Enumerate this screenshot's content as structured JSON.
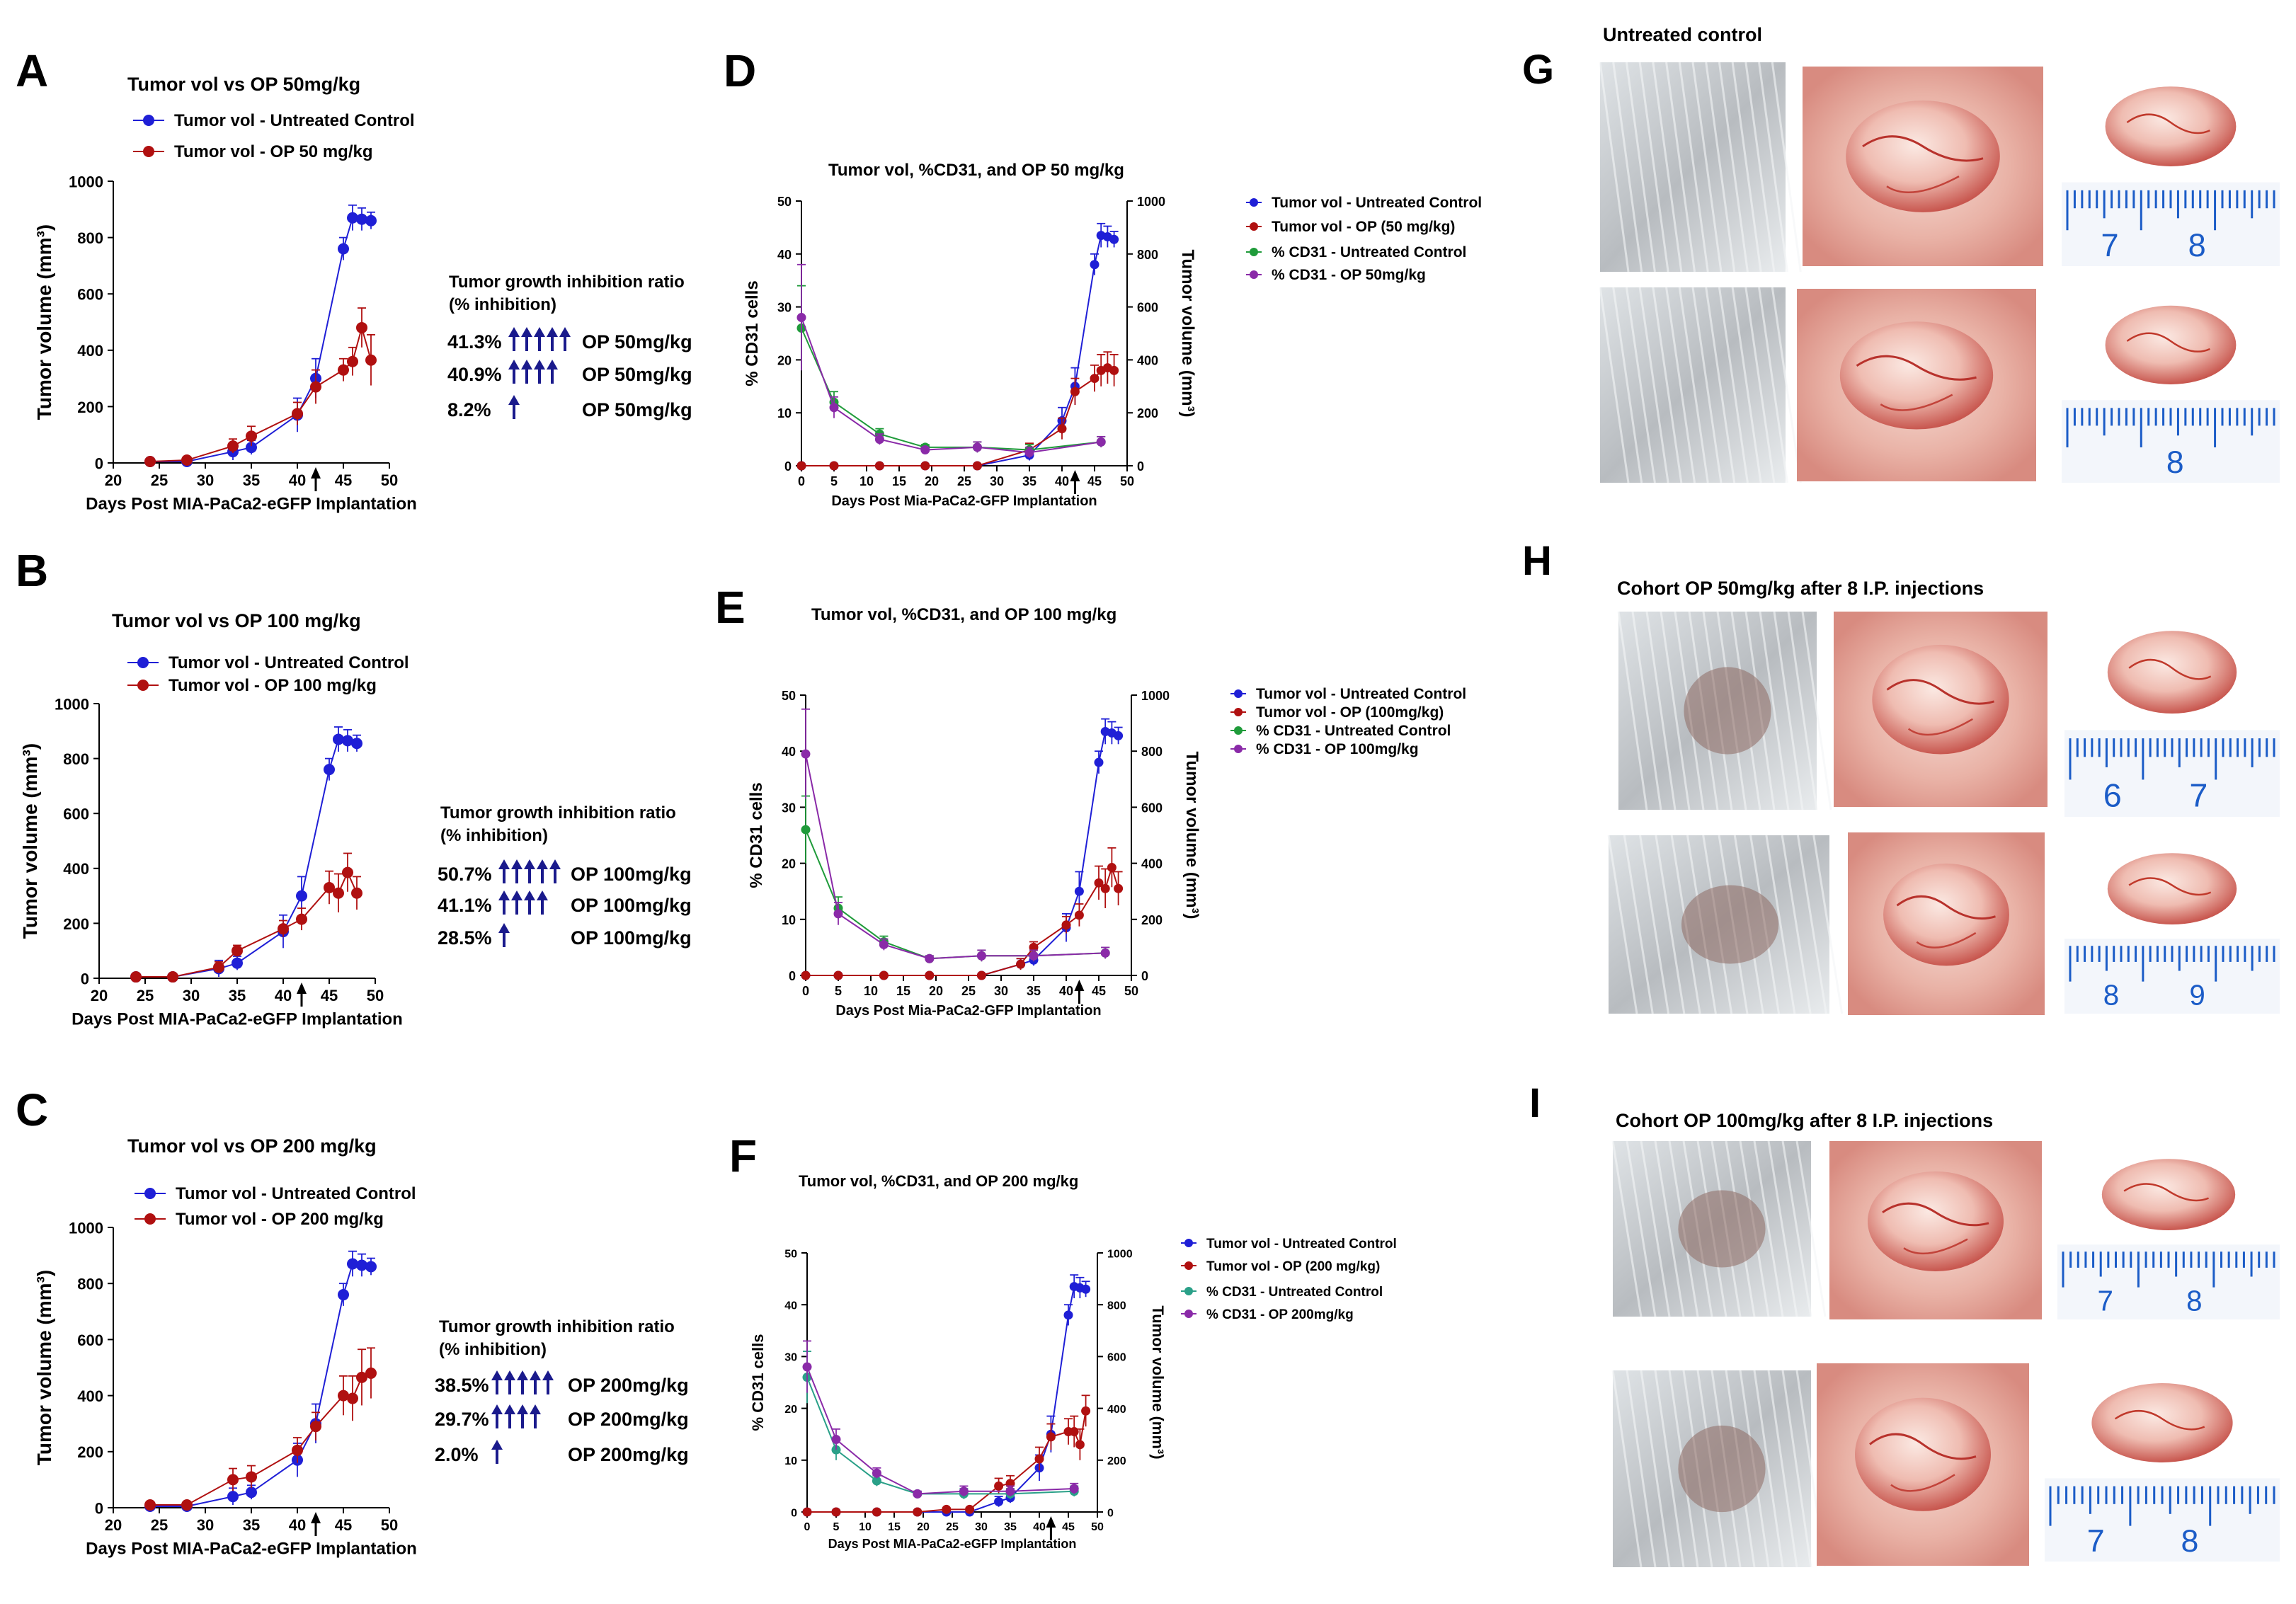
{
  "figure": {
    "panels": [
      "A",
      "B",
      "C",
      "D",
      "E",
      "F",
      "G",
      "H",
      "I"
    ]
  },
  "colors": {
    "control": "#1f1fd6",
    "op": "#b01010",
    "cd31_control": "#1f9b3a",
    "cd31_control_f": "#2aa088",
    "cd31_op": "#8a2aa8",
    "arrow": "#1a1a8c"
  },
  "inhibition": {
    "title_line1": "Tumor growth inhibition ratio",
    "title_line2": "(% inhibition)",
    "A": [
      {
        "pct": "41.3%",
        "arrows": 5,
        "label": "OP 50mg/kg"
      },
      {
        "pct": "40.9%",
        "arrows": 4,
        "label": "OP 50mg/kg"
      },
      {
        "pct": "8.2%",
        "arrows": 1,
        "label": "OP 50mg/kg"
      }
    ],
    "B": [
      {
        "pct": "50.7%",
        "arrows": 5,
        "label": "OP 100mg/kg"
      },
      {
        "pct": "41.1%",
        "arrows": 4,
        "label": "OP 100mg/kg"
      },
      {
        "pct": "28.5%",
        "arrows": 1,
        "label": "OP 100mg/kg"
      }
    ],
    "C": [
      {
        "pct": "38.5%",
        "arrows": 5,
        "label": "OP 200mg/kg"
      },
      {
        "pct": "29.7%",
        "arrows": 4,
        "label": "OP 200mg/kg"
      },
      {
        "pct": "2.0%",
        "arrows": 1,
        "label": "OP 200mg/kg"
      }
    ]
  },
  "photos": {
    "G": {
      "caption": "Untreated control",
      "rows": [
        [
          "",
          "",
          "7 8"
        ],
        [
          "",
          "",
          "8"
        ]
      ]
    },
    "H": {
      "caption": "Cohort OP 50mg/kg after 8 I.P. injections",
      "rows": [
        [
          "",
          "",
          "6 7"
        ],
        [
          "",
          "",
          "8 9"
        ]
      ]
    },
    "I": {
      "caption": "Cohort OP 100mg/kg after 8 I.P. injections",
      "rows": [
        [
          "",
          "",
          "7 8"
        ],
        [
          "",
          "",
          "7 8"
        ]
      ]
    }
  },
  "chart_data": [
    {
      "id": "A",
      "type": "line",
      "title": "Tumor vol vs OP 50mg/kg",
      "xlabel": "Days Post MIA-PaCa2-eGFP Implantation",
      "ylabel": "Tumor volume (mm³)",
      "xlim": [
        20,
        50
      ],
      "ylim": [
        0,
        1000
      ],
      "xticks": [
        20,
        25,
        30,
        35,
        40,
        45,
        50
      ],
      "yticks": [
        0,
        200,
        400,
        600,
        800,
        1000
      ],
      "treatment_arrow_x": 42,
      "series": [
        {
          "name": "Tumor vol - Untreated Control",
          "color": "control",
          "x": [
            24,
            28,
            33,
            35,
            40,
            42,
            45,
            46,
            47,
            48
          ],
          "y": [
            5,
            5,
            40,
            55,
            170,
            300,
            760,
            870,
            865,
            860
          ],
          "err": [
            5,
            5,
            30,
            25,
            60,
            70,
            40,
            45,
            40,
            30
          ]
        },
        {
          "name": "Tumor vol - OP 50 mg/kg",
          "color": "op",
          "x": [
            24,
            28,
            33,
            35,
            40,
            42,
            45,
            46,
            47,
            48
          ],
          "y": [
            5,
            10,
            60,
            95,
            175,
            270,
            330,
            360,
            480,
            365
          ],
          "err": [
            5,
            5,
            25,
            35,
            40,
            60,
            40,
            50,
            70,
            90
          ]
        }
      ]
    },
    {
      "id": "B",
      "type": "line",
      "title": "Tumor vol vs OP 100 mg/kg",
      "xlabel": "Days Post MIA-PaCa2-eGFP Implantation",
      "ylabel": "Tumor volume (mm³)",
      "xlim": [
        20,
        50
      ],
      "ylim": [
        0,
        1000
      ],
      "xticks": [
        20,
        25,
        30,
        35,
        40,
        45,
        50
      ],
      "yticks": [
        0,
        200,
        400,
        600,
        800,
        1000
      ],
      "treatment_arrow_x": 42,
      "series": [
        {
          "name": "Tumor vol - Untreated Control",
          "color": "control",
          "x": [
            24,
            28,
            33,
            35,
            40,
            42,
            45,
            46,
            47,
            48
          ],
          "y": [
            5,
            5,
            35,
            55,
            170,
            300,
            760,
            870,
            865,
            855
          ],
          "err": [
            5,
            5,
            30,
            25,
            60,
            70,
            40,
            45,
            40,
            30
          ]
        },
        {
          "name": "Tumor vol - OP 100 mg/kg",
          "color": "op",
          "x": [
            24,
            28,
            33,
            35,
            40,
            42,
            45,
            46,
            47,
            48
          ],
          "y": [
            5,
            5,
            40,
            100,
            180,
            215,
            330,
            310,
            385,
            310
          ],
          "err": [
            5,
            5,
            20,
            20,
            30,
            40,
            60,
            70,
            70,
            60
          ]
        }
      ]
    },
    {
      "id": "C",
      "type": "line",
      "title": "Tumor vol vs OP 200 mg/kg",
      "xlabel": "Days Post MIA-PaCa2-eGFP Implantation",
      "ylabel": "Tumor volume (mm³)",
      "xlim": [
        20,
        50
      ],
      "ylim": [
        0,
        1000
      ],
      "xticks": [
        20,
        25,
        30,
        35,
        40,
        45,
        50
      ],
      "yticks": [
        0,
        200,
        400,
        600,
        800,
        1000
      ],
      "treatment_arrow_x": 42,
      "series": [
        {
          "name": "Tumor vol - Untreated Control",
          "color": "control",
          "x": [
            24,
            28,
            33,
            35,
            40,
            42,
            45,
            46,
            47,
            48
          ],
          "y": [
            5,
            5,
            40,
            55,
            170,
            300,
            760,
            870,
            865,
            860
          ],
          "err": [
            5,
            5,
            30,
            25,
            60,
            70,
            40,
            45,
            40,
            30
          ]
        },
        {
          "name": "Tumor vol - OP 200 mg/kg",
          "color": "op",
          "x": [
            24,
            28,
            33,
            35,
            40,
            42,
            45,
            46,
            47,
            48
          ],
          "y": [
            10,
            10,
            100,
            110,
            205,
            290,
            400,
            390,
            465,
            480
          ],
          "err": [
            5,
            5,
            40,
            40,
            45,
            50,
            70,
            80,
            100,
            90
          ]
        }
      ]
    },
    {
      "id": "D",
      "type": "line",
      "title": "Tumor vol, %CD31, and OP 50 mg/kg",
      "xlabel": "Days Post Mia-PaCa2-GFP Implantation",
      "ylabel": "% CD31 cells",
      "ylabel2": "Tumor volume (mm³)",
      "xlim": [
        0,
        50
      ],
      "ylim": [
        0,
        50
      ],
      "ylim2": [
        0,
        1000
      ],
      "xticks": [
        0,
        5,
        10,
        15,
        20,
        25,
        30,
        35,
        40,
        45,
        50
      ],
      "yticks": [
        0,
        10,
        20,
        30,
        40,
        50
      ],
      "yticks2": [
        0,
        200,
        400,
        600,
        800,
        1000
      ],
      "treatment_arrow_x": 42,
      "series": [
        {
          "name": "Tumor vol - Untreated  Control",
          "color": "control",
          "axis": "right",
          "x": [
            0,
            5,
            12,
            19,
            27,
            35,
            40,
            42,
            45,
            46,
            47,
            48
          ],
          "y": [
            0,
            0,
            0,
            0,
            0,
            40,
            170,
            300,
            760,
            870,
            865,
            855
          ],
          "err": [
            0,
            0,
            0,
            0,
            0,
            20,
            50,
            70,
            40,
            45,
            40,
            30
          ]
        },
        {
          "name": "Tumor vol - OP (50 mg/kg)",
          "color": "op",
          "axis": "right",
          "x": [
            0,
            5,
            12,
            19,
            27,
            35,
            40,
            42,
            45,
            46,
            47,
            48
          ],
          "y": [
            0,
            0,
            0,
            0,
            0,
            60,
            140,
            280,
            330,
            360,
            370,
            360
          ],
          "err": [
            0,
            0,
            0,
            0,
            0,
            25,
            40,
            50,
            50,
            60,
            60,
            60
          ]
        },
        {
          "name": "% CD31 - Untreated Control",
          "color": "cd31_control",
          "axis": "left",
          "x": [
            0,
            5,
            12,
            19,
            27,
            35,
            46
          ],
          "y": [
            26,
            12,
            6,
            3.5,
            3.5,
            3,
            4.5
          ],
          "err": [
            8,
            2,
            1,
            0.5,
            1,
            1,
            1
          ]
        },
        {
          "name": "% CD31 - OP 50mg/kg",
          "color": "cd31_op",
          "axis": "left",
          "x": [
            0,
            5,
            12,
            19,
            27,
            35,
            46
          ],
          "y": [
            28,
            11,
            5,
            3,
            3.5,
            2.5,
            4.5
          ],
          "err": [
            10,
            2,
            1,
            0.5,
            1,
            1,
            1
          ]
        }
      ]
    },
    {
      "id": "E",
      "type": "line",
      "title": "Tumor vol, %CD31, and OP 100 mg/kg",
      "xlabel": "Days Post Mia-PaCa2-GFP Implantation",
      "ylabel": "% CD31 cells",
      "ylabel2": "Tumor volume (mm³)",
      "xlim": [
        0,
        50
      ],
      "ylim": [
        0,
        50
      ],
      "ylim2": [
        0,
        1000
      ],
      "xticks": [
        0,
        5,
        10,
        15,
        20,
        25,
        30,
        35,
        40,
        45,
        50
      ],
      "yticks": [
        0,
        10,
        20,
        30,
        40,
        50
      ],
      "yticks2": [
        0,
        200,
        400,
        600,
        800,
        1000
      ],
      "treatment_arrow_x": 42,
      "series": [
        {
          "name": "Tumor vol - Untreated  Control",
          "color": "control",
          "axis": "right",
          "x": [
            0,
            5,
            12,
            19,
            27,
            33,
            35,
            40,
            42,
            45,
            46,
            47,
            48
          ],
          "y": [
            0,
            0,
            0,
            0,
            0,
            40,
            55,
            170,
            300,
            760,
            870,
            865,
            855
          ],
          "err": [
            0,
            0,
            0,
            0,
            0,
            20,
            20,
            50,
            70,
            40,
            45,
            40,
            30
          ]
        },
        {
          "name": "Tumor vol - OP (100mg/kg)",
          "color": "op",
          "axis": "right",
          "x": [
            0,
            5,
            12,
            19,
            27,
            33,
            35,
            40,
            42,
            45,
            46,
            47,
            48
          ],
          "y": [
            0,
            0,
            0,
            0,
            0,
            40,
            100,
            180,
            215,
            330,
            310,
            385,
            310
          ],
          "err": [
            0,
            0,
            0,
            0,
            0,
            20,
            20,
            30,
            40,
            60,
            70,
            70,
            60
          ]
        },
        {
          "name": "% CD31 - Untreated Control",
          "color": "cd31_control",
          "axis": "left",
          "x": [
            0,
            5,
            12,
            19,
            27,
            35,
            46
          ],
          "y": [
            26,
            12,
            6,
            3,
            3.5,
            3.5,
            4
          ],
          "err": [
            6,
            2,
            1,
            0.5,
            1,
            1,
            1
          ]
        },
        {
          "name": "% CD31 - OP 100mg/kg",
          "color": "cd31_op",
          "axis": "left",
          "x": [
            0,
            5,
            12,
            19,
            27,
            35,
            46
          ],
          "y": [
            39.5,
            11,
            5.5,
            3,
            3.5,
            3.5,
            4
          ],
          "err": [
            8,
            2,
            1,
            0.5,
            1,
            1,
            1
          ]
        }
      ]
    },
    {
      "id": "F",
      "type": "line",
      "title": "Tumor vol, %CD31, and OP 200 mg/kg",
      "xlabel": "Days Post MIA-PaCa2-eGFP Implantation",
      "ylabel": "% CD31 cells",
      "ylabel2": "Tumor volume (mm³)",
      "xlim": [
        0,
        50
      ],
      "ylim": [
        0,
        50
      ],
      "ylim2": [
        0,
        1000
      ],
      "xticks": [
        0,
        5,
        10,
        15,
        20,
        25,
        30,
        35,
        40,
        45,
        50
      ],
      "yticks": [
        0,
        10,
        20,
        30,
        40,
        50
      ],
      "yticks2": [
        0,
        200,
        400,
        600,
        800,
        1000
      ],
      "treatment_arrow_x": 42,
      "series": [
        {
          "name": "Tumor vol - Untreated  Control",
          "color": "control",
          "axis": "right",
          "x": [
            0,
            5,
            12,
            19,
            24,
            28,
            33,
            35,
            40,
            42,
            45,
            46,
            47,
            48
          ],
          "y": [
            0,
            0,
            0,
            0,
            0,
            0,
            40,
            55,
            170,
            300,
            760,
            870,
            865,
            860
          ],
          "err": [
            0,
            0,
            0,
            0,
            0,
            0,
            20,
            20,
            50,
            70,
            40,
            45,
            40,
            30
          ]
        },
        {
          "name": "Tumor vol - OP (200 mg/kg)",
          "color": "op",
          "axis": "right",
          "x": [
            0,
            5,
            12,
            19,
            24,
            28,
            33,
            35,
            40,
            42,
            45,
            46,
            47,
            48
          ],
          "y": [
            0,
            0,
            0,
            0,
            10,
            10,
            100,
            110,
            205,
            290,
            310,
            310,
            260,
            390
          ],
          "err": [
            0,
            0,
            0,
            0,
            5,
            5,
            30,
            30,
            45,
            50,
            50,
            60,
            60,
            60
          ]
        },
        {
          "name": "% CD31 - Untreated Control",
          "color": "cd31_control_f",
          "axis": "left",
          "x": [
            0,
            5,
            12,
            19,
            27,
            35,
            46
          ],
          "y": [
            26,
            12,
            6,
            3.5,
            3.5,
            3.5,
            4
          ],
          "err": [
            5,
            2,
            1,
            0.5,
            1,
            1,
            1
          ]
        },
        {
          "name": "% CD31 - OP 200mg/kg",
          "color": "cd31_op",
          "axis": "left",
          "x": [
            0,
            5,
            12,
            19,
            27,
            35,
            46
          ],
          "y": [
            28,
            14,
            7.5,
            3.5,
            4,
            4,
            4.5
          ],
          "err": [
            5,
            2,
            1,
            0.5,
            1,
            1,
            1
          ]
        }
      ]
    }
  ]
}
